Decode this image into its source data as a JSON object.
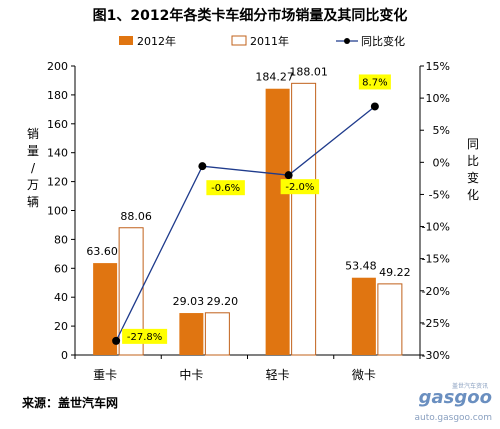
{
  "title": "图1、2012年各类卡车细分市场销量及其同比变化",
  "source": "来源：盖世汽车网",
  "watermark": {
    "brand": "gasgoo",
    "url": "auto.gasgoo.com",
    "tag": "盖世汽车资讯"
  },
  "colors": {
    "s2012": "#e07511",
    "s2011_fill": "#ffffff",
    "s2011_stroke": "#c0601a",
    "line": "#1f3b8c",
    "annotation": "#ffff00"
  },
  "chart_data": {
    "type": "bar",
    "categories": [
      "重卡",
      "中卡",
      "轻卡",
      "微卡"
    ],
    "series": [
      {
        "name": "2012年",
        "values": [
          63.6,
          29.03,
          184.27,
          53.48
        ],
        "labels": [
          "63.60",
          "29.03",
          "184.27",
          "53.48"
        ]
      },
      {
        "name": "2011年",
        "values": [
          88.06,
          29.2,
          188.01,
          49.22
        ],
        "labels": [
          "88.06",
          "29.20",
          "188.01",
          "49.22"
        ]
      },
      {
        "name": "同比变化",
        "type": "line",
        "axis": "right",
        "values": [
          -27.8,
          -0.6,
          -2.0,
          8.7
        ],
        "labels": [
          "-27.8%",
          "-0.6%",
          "-2.0%",
          "8.7%"
        ]
      }
    ],
    "ylabel": "销量/万辆",
    "y2label": "同比变化",
    "ylim": [
      0,
      200
    ],
    "yticks": [
      "0",
      "20",
      "40",
      "60",
      "80",
      "100",
      "120",
      "140",
      "160",
      "180",
      "200"
    ],
    "y2lim": [
      -30,
      15
    ],
    "y2ticks": [
      "15%",
      "10%",
      "5%",
      "0%",
      "-5%",
      "-10%",
      "-15%",
      "-20%",
      "-25%",
      "-30%"
    ],
    "legend_position": "top",
    "grid": false
  }
}
